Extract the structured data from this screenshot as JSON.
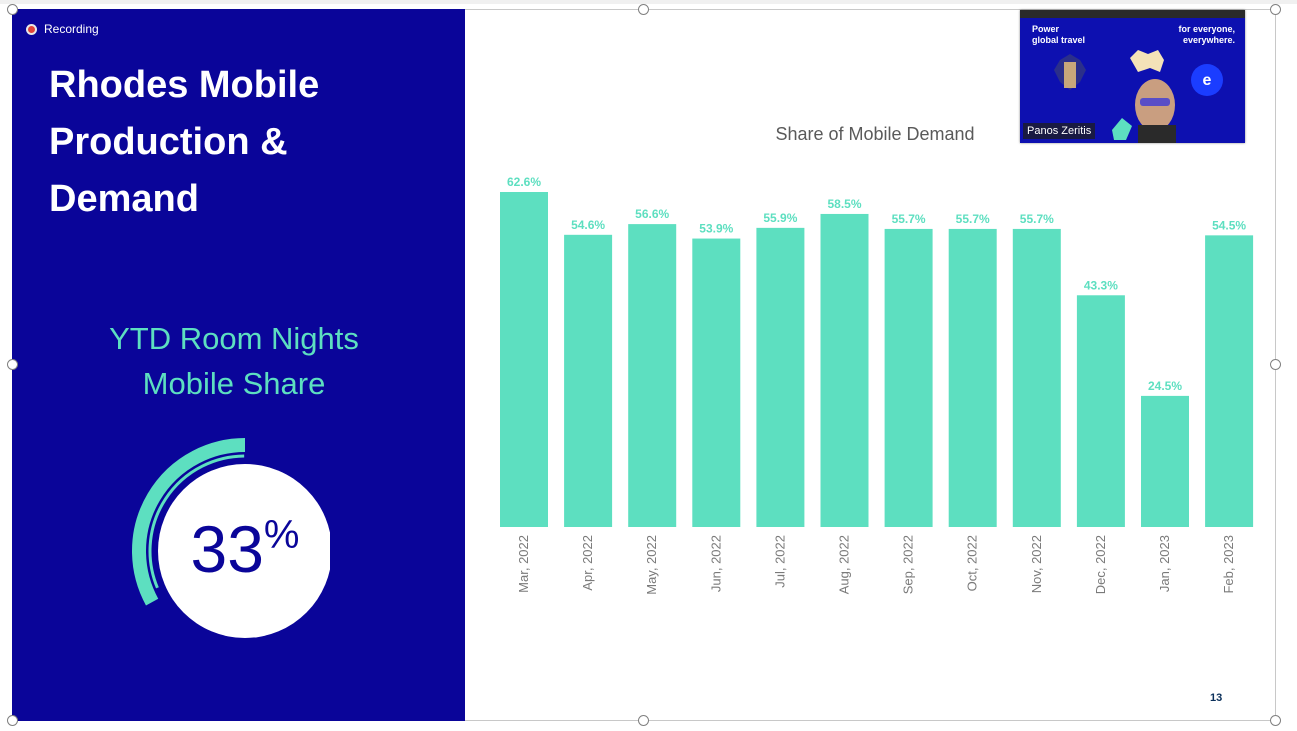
{
  "recording_label": "Recording",
  "slide": {
    "title_lines": [
      "Rhodes Mobile",
      "Production &",
      "Demand"
    ],
    "ytd_lines": [
      "YTD Room Nights",
      "Mobile Share"
    ],
    "ytd_value": "33",
    "ytd_unit": "%",
    "ytd_fraction": 0.33,
    "page_number": "13"
  },
  "video": {
    "participant_name": "Panos Zeritis",
    "banner_left": [
      "Power",
      "global travel"
    ],
    "banner_right": [
      "for everyone,",
      "everywhere."
    ]
  },
  "colors": {
    "panel": "#0a0599",
    "accent": "#5ddfc0",
    "bar": "#5ddfc0"
  },
  "chart_data": {
    "type": "bar",
    "title": "Share of Mobile Demand",
    "categories": [
      "Mar, 2022",
      "Apr, 2022",
      "May, 2022",
      "Jun, 2022",
      "Jul, 2022",
      "Aug, 2022",
      "Sep, 2022",
      "Oct, 2022",
      "Nov, 2022",
      "Dec, 2022",
      "Jan, 2023",
      "Feb, 2023"
    ],
    "values": [
      62.6,
      54.6,
      56.6,
      53.9,
      55.9,
      58.5,
      55.7,
      55.7,
      55.7,
      43.3,
      24.5,
      54.5
    ],
    "labels": [
      "62.6%",
      "54.6%",
      "56.6%",
      "53.9%",
      "55.9%",
      "58.5%",
      "55.7%",
      "55.7%",
      "55.7%",
      "43.3%",
      "24.5%",
      "54.5%"
    ],
    "ylim": [
      0,
      62.6
    ],
    "grid": false,
    "legend": "none"
  }
}
